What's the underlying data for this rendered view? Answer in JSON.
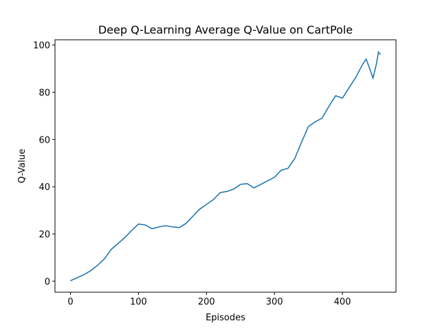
{
  "chart_data": {
    "type": "line",
    "title": "Deep Q-Learning Average Q-Value on CartPole",
    "x_label": "Episodes",
    "y_label": "Q-Value",
    "x": [
      0,
      10,
      20,
      30,
      40,
      50,
      60,
      70,
      80,
      90,
      100,
      110,
      120,
      130,
      140,
      150,
      160,
      170,
      180,
      190,
      200,
      210,
      220,
      230,
      240,
      250,
      260,
      270,
      280,
      290,
      300,
      310,
      320,
      330,
      340,
      350,
      360,
      370,
      380,
      390,
      400,
      410,
      420,
      430,
      435,
      440,
      445,
      450,
      453,
      456
    ],
    "series": [
      {
        "name": "Q-Value",
        "color": "#1f77b4",
        "values": [
          0.2,
          1.5,
          2.8,
          4.5,
          6.8,
          9.5,
          13.5,
          16,
          18.5,
          21.5,
          24.2,
          23.8,
          22.2,
          23,
          23.5,
          23,
          22.7,
          24.5,
          27.5,
          30.5,
          32.5,
          34.5,
          37.5,
          38,
          39,
          41,
          41.3,
          39.5,
          41,
          42.5,
          44,
          47,
          47.8,
          52,
          59,
          65.5,
          67.5,
          69,
          74,
          78.5,
          77.5,
          82,
          86.5,
          92,
          94,
          90,
          86,
          92,
          97,
          96
        ]
      }
    ],
    "xlim": [
      -22.8,
      478.8
    ],
    "ylim": [
      -4.66,
      102.2
    ],
    "xticks": [
      0,
      100,
      200,
      300,
      400
    ],
    "yticks": [
      0,
      20,
      40,
      60,
      80,
      100
    ]
  }
}
